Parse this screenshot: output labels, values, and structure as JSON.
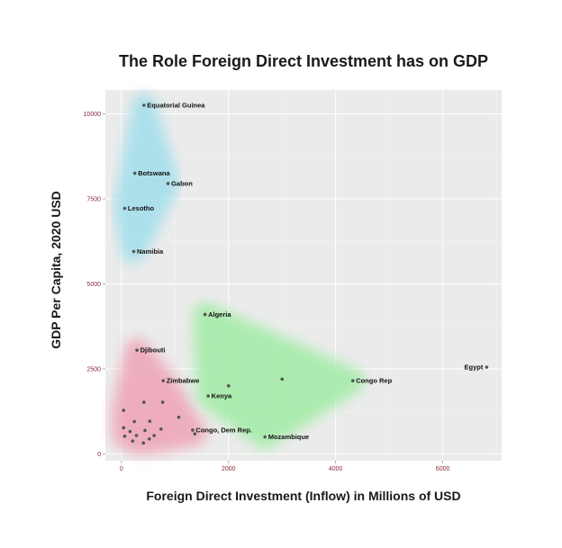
{
  "chart_data": {
    "type": "scatter",
    "title": "The Role Foreign Direct Investment has on GDP",
    "xlabel": "Foreign Direct Investment (Inflow) in Millions of USD",
    "ylabel": "GDP Per Capita, 2020 USD",
    "xlim": [
      -300,
      7100
    ],
    "ylim": [
      -200,
      10700
    ],
    "x_ticks": [
      0,
      2000,
      4000,
      6000
    ],
    "y_ticks": [
      0,
      2500,
      5000,
      7500,
      10000
    ],
    "grid": true,
    "colors": {
      "panel": "#ebebeb",
      "grid_major": "#ffffff",
      "grid_minor": "#f4f4f4",
      "cluster_high_gdp": "#a8e0ec",
      "cluster_low": "#eeaabb",
      "cluster_mid": "#a8ecac",
      "point": "#555555",
      "tick_text": "#8a2a3a"
    },
    "clusters": [
      {
        "id": "high_gdp",
        "color": "#a8e0ec",
        "points": [
          [
            420,
            10250
          ],
          [
            250,
            8250
          ],
          [
            870,
            7950
          ],
          [
            60,
            7220
          ],
          [
            230,
            5950
          ]
        ]
      },
      {
        "id": "low",
        "color": "#eeaabb",
        "points": [
          [
            290,
            3050
          ],
          [
            780,
            2150
          ],
          [
            1330,
            700
          ],
          [
            420,
            1520
          ],
          [
            770,
            1520
          ],
          [
            40,
            1280
          ],
          [
            1070,
            1080
          ],
          [
            240,
            950
          ],
          [
            530,
            960
          ],
          [
            740,
            730
          ],
          [
            40,
            770
          ],
          [
            160,
            660
          ],
          [
            440,
            690
          ],
          [
            280,
            540
          ],
          [
            610,
            540
          ],
          [
            60,
            520
          ],
          [
            210,
            380
          ],
          [
            410,
            320
          ],
          [
            520,
            440
          ],
          [
            1370,
            590
          ]
        ]
      },
      {
        "id": "mid",
        "color": "#a8ecac",
        "points": [
          [
            1560,
            4100
          ],
          [
            1620,
            1700
          ],
          [
            2000,
            2000
          ],
          [
            3000,
            2200
          ],
          [
            4320,
            2150
          ],
          [
            2680,
            500
          ]
        ]
      }
    ],
    "points": [
      {
        "label": "Equatorial Guinea",
        "x": 420,
        "y": 10250
      },
      {
        "label": "Botswana",
        "x": 250,
        "y": 8250
      },
      {
        "label": "Gabon",
        "x": 870,
        "y": 7950
      },
      {
        "label": "Lesotho",
        "x": 60,
        "y": 7220
      },
      {
        "label": "Namibia",
        "x": 230,
        "y": 5950
      },
      {
        "label": "Algeria",
        "x": 1560,
        "y": 4100
      },
      {
        "label": "Djibouti",
        "x": 290,
        "y": 3050
      },
      {
        "label": "Zimbabwe",
        "x": 780,
        "y": 2150
      },
      {
        "label": "Kenya",
        "x": 1620,
        "y": 1700
      },
      {
        "label": "Congo Rep",
        "x": 4320,
        "y": 2150
      },
      {
        "label": "Egypt",
        "x": 6820,
        "y": 2550
      },
      {
        "label": "Congo, Dem Rep.",
        "x": 1330,
        "y": 700
      },
      {
        "label": "Mozambique",
        "x": 2680,
        "y": 500
      },
      {
        "label": "",
        "x": 2000,
        "y": 2000
      },
      {
        "label": "",
        "x": 3000,
        "y": 2200
      },
      {
        "label": "",
        "x": 420,
        "y": 1520
      },
      {
        "label": "",
        "x": 770,
        "y": 1520
      },
      {
        "label": "",
        "x": 40,
        "y": 1280
      },
      {
        "label": "",
        "x": 1070,
        "y": 1080
      },
      {
        "label": "",
        "x": 240,
        "y": 950
      },
      {
        "label": "",
        "x": 530,
        "y": 960
      },
      {
        "label": "",
        "x": 740,
        "y": 730
      },
      {
        "label": "",
        "x": 40,
        "y": 770
      },
      {
        "label": "",
        "x": 160,
        "y": 660
      },
      {
        "label": "",
        "x": 440,
        "y": 690
      },
      {
        "label": "",
        "x": 280,
        "y": 540
      },
      {
        "label": "",
        "x": 610,
        "y": 540
      },
      {
        "label": "",
        "x": 60,
        "y": 520
      },
      {
        "label": "",
        "x": 210,
        "y": 380
      },
      {
        "label": "",
        "x": 410,
        "y": 320
      },
      {
        "label": "",
        "x": 520,
        "y": 440
      },
      {
        "label": "",
        "x": 1370,
        "y": 590
      }
    ]
  }
}
